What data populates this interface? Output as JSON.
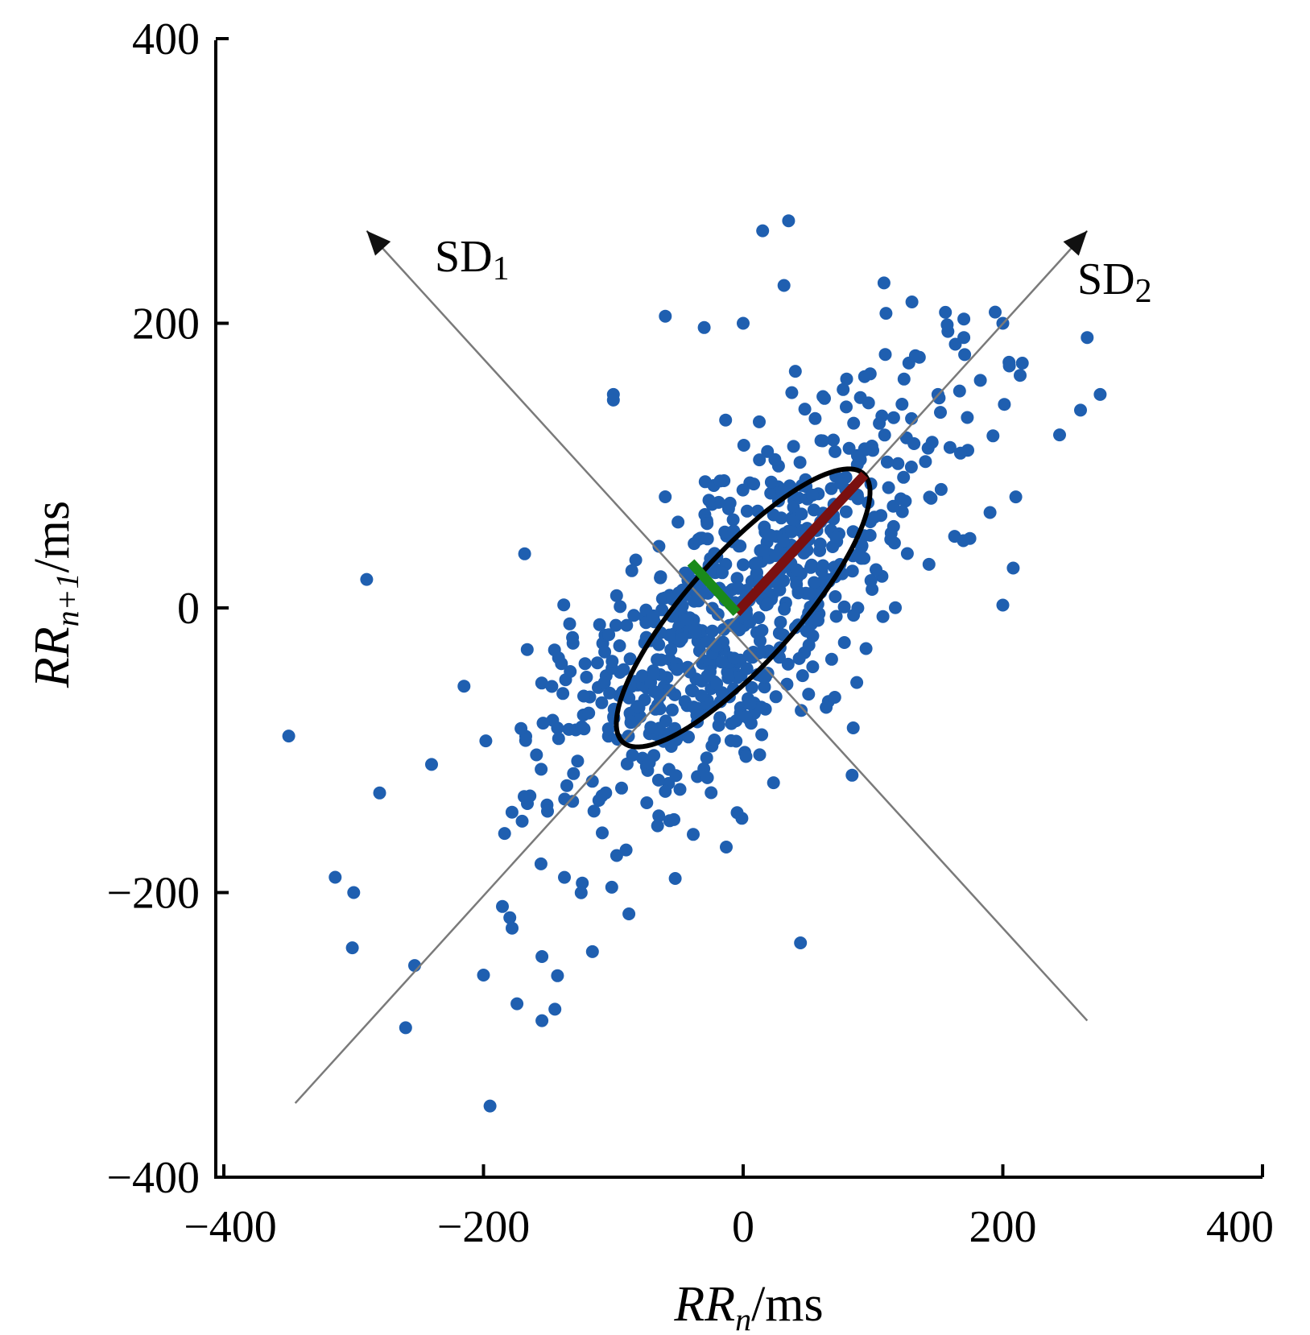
{
  "chart_data": {
    "type": "scatter",
    "title": "",
    "xlabel": {
      "var": "RR",
      "sub": "n",
      "unit": "/ms"
    },
    "ylabel": {
      "var": "RR",
      "sub": "n+1",
      "unit": "/ms"
    },
    "xlim": [
      -400,
      400
    ],
    "ylim": [
      -400,
      400
    ],
    "x_ticks": [
      -400,
      -200,
      0,
      200,
      400
    ],
    "y_ticks": [
      -400,
      -200,
      0,
      200,
      400
    ],
    "x_tick_labels": [
      "−400",
      "−200",
      "0",
      "200",
      "400"
    ],
    "y_tick_labels": [
      "−400",
      "−200",
      "0",
      "200",
      "400"
    ],
    "grid": false,
    "point_color": "#1f5fb0",
    "ellipse": {
      "center": [
        0,
        0
      ],
      "sd1": 40,
      "sd2": 115,
      "angle_deg": 45,
      "color": "#000000"
    },
    "sd1_axis": {
      "from": [
        -290,
        265
      ],
      "to": [
        265,
        -290
      ],
      "label": {
        "base": "SD",
        "sub": "1"
      },
      "color": "#7a7a7a",
      "segment_color": "#1a8a1a"
    },
    "sd2_axis": {
      "from": [
        -345,
        -348
      ],
      "to": [
        265,
        265
      ],
      "label": {
        "base": "SD",
        "sub": "2"
      },
      "color": "#7a7a7a",
      "segment_color": "#7a1010"
    },
    "outliers": [
      [
        15,
        265
      ],
      [
        35,
        272
      ],
      [
        265,
        190
      ],
      [
        275,
        150
      ],
      [
        -290,
        20
      ],
      [
        -350,
        -90
      ],
      [
        -195,
        -350
      ],
      [
        -260,
        -295
      ],
      [
        -300,
        -200
      ],
      [
        -280,
        -130
      ],
      [
        -240,
        -110
      ],
      [
        -215,
        -55
      ],
      [
        200,
        200
      ],
      [
        205,
        170
      ],
      [
        215,
        172
      ],
      [
        210,
        78
      ],
      [
        208,
        28
      ],
      [
        200,
        2
      ],
      [
        -60,
        205
      ],
      [
        -30,
        197
      ],
      [
        0,
        200
      ],
      [
        130,
        215
      ],
      [
        110,
        207
      ],
      [
        170,
        203
      ],
      [
        170,
        190
      ],
      [
        150,
        150
      ],
      [
        -100,
        150
      ],
      [
        -100,
        146
      ],
      [
        -145,
        -282
      ],
      [
        -155,
        -290
      ],
      [
        -155,
        -245
      ],
      [
        -200,
        -258
      ],
      [
        -178,
        -225
      ]
    ],
    "cluster": {
      "n": 700,
      "sd_major": 115,
      "sd_minor": 40,
      "seed": 7
    }
  }
}
